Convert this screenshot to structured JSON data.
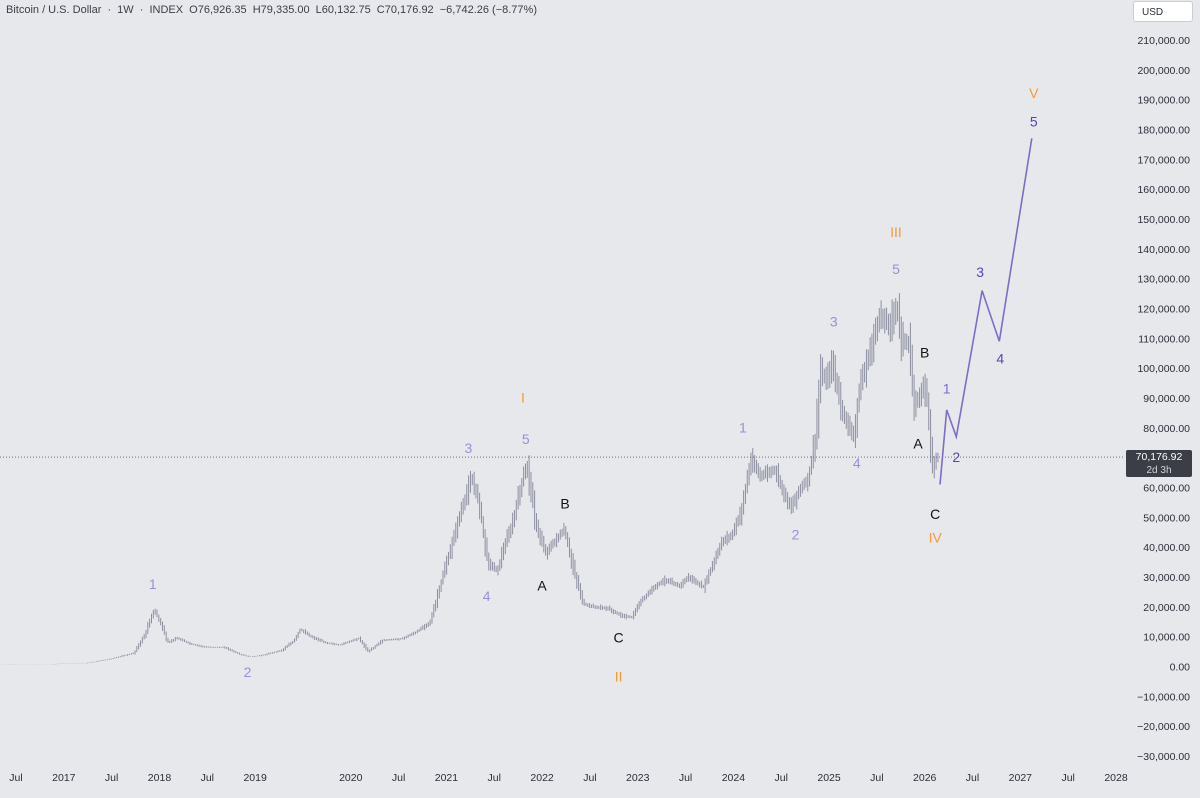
{
  "header": {
    "symbol": "Bitcoin / U.S. Dollar",
    "interval": "1W",
    "source": "INDEX",
    "open": "O76,926.35",
    "high": "H79,335.00",
    "low": "L60,132.75",
    "close": "C70,176.92",
    "change": "−6,742.26 (−8.77%)"
  },
  "toolbar": {
    "currency_label": "USD"
  },
  "price_badge": {
    "price": "70,176.92",
    "countdown": "2d 3h"
  },
  "colors": {
    "background": "#e7e8ec",
    "candle": "#8c8fa0",
    "projection": "#7d6cc8",
    "primary_wave": "#f29a37",
    "minor_wave": "#9a8fd6",
    "projection_label": "#5a43b0",
    "correction_label": "#111111"
  },
  "chart_data": {
    "type": "line",
    "title": "",
    "y_axis": {
      "min": -30000,
      "max": 210000,
      "step": 10000,
      "tick_labels": [
        "210,000.00",
        "200,000.00",
        "190,000.00",
        "180,000.00",
        "170,000.00",
        "160,000.00",
        "150,000.00",
        "140,000.00",
        "130,000.00",
        "120,000.00",
        "110,000.00",
        "100,000.00",
        "90,000.00",
        "80,000.00",
        "70,000.00",
        "60,000.00",
        "50,000.00",
        "40,000.00",
        "30,000.00",
        "20,000.00",
        "10,000.00",
        "0.00",
        "−10,000.00",
        "−20,000.00",
        "−30,000.00"
      ]
    },
    "x_axis": {
      "tick_labels": [
        "Jul",
        "2017",
        "Jul",
        "2018",
        "Jul",
        "2019",
        "2020",
        "Jul",
        "2021",
        "Jul",
        "2022",
        "Jul",
        "2023",
        "Jul",
        "2024",
        "Jul",
        "2025",
        "Jul",
        "2026",
        "Jul",
        "2027",
        "Jul",
        "2028"
      ],
      "tick_dates": [
        2016.5,
        2017.0,
        2017.5,
        2018.0,
        2018.5,
        2019.0,
        2020.0,
        2020.5,
        2021.0,
        2021.5,
        2022.0,
        2022.5,
        2023.0,
        2023.5,
        2024.0,
        2024.5,
        2025.0,
        2025.5,
        2026.0,
        2026.5,
        2027.0,
        2027.5,
        2028.0
      ]
    },
    "last_price": 70176.92,
    "price_series": {
      "name": "",
      "points": [
        [
          2016.0,
          430
        ],
        [
          2016.5,
          650
        ],
        [
          2016.9,
          750
        ],
        [
          2017.0,
          1000
        ],
        [
          2017.25,
          1100
        ],
        [
          2017.5,
          2500
        ],
        [
          2017.75,
          4500
        ],
        [
          2017.87,
          11000
        ],
        [
          2017.96,
          19000
        ],
        [
          2018.04,
          14000
        ],
        [
          2018.1,
          8000
        ],
        [
          2018.2,
          9500
        ],
        [
          2018.35,
          7500
        ],
        [
          2018.5,
          6500
        ],
        [
          2018.7,
          6400
        ],
        [
          2018.85,
          4200
        ],
        [
          2018.96,
          3200
        ],
        [
          2019.1,
          3800
        ],
        [
          2019.3,
          5500
        ],
        [
          2019.42,
          8500
        ],
        [
          2019.49,
          12500
        ],
        [
          2019.6,
          10000
        ],
        [
          2019.75,
          8000
        ],
        [
          2019.9,
          7200
        ],
        [
          2020.1,
          9500
        ],
        [
          2020.2,
          5000
        ],
        [
          2020.35,
          8800
        ],
        [
          2020.55,
          9300
        ],
        [
          2020.7,
          11500
        ],
        [
          2020.85,
          15000
        ],
        [
          2020.96,
          28000
        ],
        [
          2021.05,
          38000
        ],
        [
          2021.15,
          50000
        ],
        [
          2021.28,
          63000
        ],
        [
          2021.36,
          55000
        ],
        [
          2021.45,
          35000
        ],
        [
          2021.55,
          32000
        ],
        [
          2021.6,
          38000
        ],
        [
          2021.7,
          47000
        ],
        [
          2021.8,
          61000
        ],
        [
          2021.86,
          68000
        ],
        [
          2021.95,
          48000
        ],
        [
          2022.05,
          38000
        ],
        [
          2022.15,
          42000
        ],
        [
          2022.25,
          46000
        ],
        [
          2022.35,
          32000
        ],
        [
          2022.45,
          21000
        ],
        [
          2022.55,
          20000
        ],
        [
          2022.7,
          19500
        ],
        [
          2022.85,
          17000
        ],
        [
          2022.96,
          16500
        ],
        [
          2023.05,
          22000
        ],
        [
          2023.2,
          27000
        ],
        [
          2023.3,
          29000
        ],
        [
          2023.45,
          27000
        ],
        [
          2023.55,
          30000
        ],
        [
          2023.7,
          26500
        ],
        [
          2023.8,
          34000
        ],
        [
          2023.9,
          42000
        ],
        [
          2024.0,
          44000
        ],
        [
          2024.1,
          52000
        ],
        [
          2024.2,
          69000
        ],
        [
          2024.3,
          64000
        ],
        [
          2024.45,
          66000
        ],
        [
          2024.55,
          58000
        ],
        [
          2024.62,
          53000
        ],
        [
          2024.7,
          59000
        ],
        [
          2024.8,
          63000
        ],
        [
          2024.87,
          75000
        ],
        [
          2024.93,
          98000
        ],
        [
          2025.0,
          96000
        ],
        [
          2025.05,
          102000
        ],
        [
          2025.15,
          86000
        ],
        [
          2025.27,
          77000
        ],
        [
          2025.35,
          95000
        ],
        [
          2025.45,
          106000
        ],
        [
          2025.55,
          118000
        ],
        [
          2025.65,
          114000
        ],
        [
          2025.73,
          121000
        ],
        [
          2025.77,
          110000
        ],
        [
          2025.85,
          108000
        ],
        [
          2025.9,
          88000
        ],
        [
          2025.96,
          90000
        ],
        [
          2026.0,
          95000
        ],
        [
          2026.05,
          88000
        ],
        [
          2026.1,
          67000
        ],
        [
          2026.14,
          70177
        ]
      ]
    },
    "projection_series": {
      "name": "",
      "points": [
        [
          2026.16,
          61000
        ],
        [
          2026.23,
          86000
        ],
        [
          2026.33,
          77000
        ],
        [
          2026.6,
          126000
        ],
        [
          2026.78,
          109000
        ],
        [
          2027.12,
          177000
        ]
      ]
    },
    "annotations": [
      {
        "text": "1",
        "x": 2017.93,
        "y": 26000,
        "color": "#9a8fd6"
      },
      {
        "text": "2",
        "x": 2018.92,
        "y": -3500,
        "color": "#9a8fd6"
      },
      {
        "text": "3",
        "x": 2021.23,
        "y": 71500,
        "color": "#9a8fd6"
      },
      {
        "text": "4",
        "x": 2021.42,
        "y": 22000,
        "color": "#9a8fd6"
      },
      {
        "text": "5",
        "x": 2021.83,
        "y": 74500,
        "color": "#9a8fd6"
      },
      {
        "text": "I",
        "x": 2021.8,
        "y": 88500,
        "color": "#f29a37"
      },
      {
        "text": "A",
        "x": 2022.0,
        "y": 25500,
        "color": "#111111"
      },
      {
        "text": "B",
        "x": 2022.24,
        "y": 53000,
        "color": "#111111"
      },
      {
        "text": "C",
        "x": 2022.8,
        "y": 8000,
        "color": "#111111"
      },
      {
        "text": "II",
        "x": 2022.8,
        "y": -5000,
        "color": "#f29a37"
      },
      {
        "text": "1",
        "x": 2024.1,
        "y": 78500,
        "color": "#9a8fd6"
      },
      {
        "text": "2",
        "x": 2024.65,
        "y": 42500,
        "color": "#9a8fd6"
      },
      {
        "text": "3",
        "x": 2025.05,
        "y": 114000,
        "color": "#9a8fd6"
      },
      {
        "text": "4",
        "x": 2025.29,
        "y": 66500,
        "color": "#9a8fd6"
      },
      {
        "text": "5",
        "x": 2025.7,
        "y": 131500,
        "color": "#9a8fd6"
      },
      {
        "text": "III",
        "x": 2025.7,
        "y": 144000,
        "color": "#f29a37"
      },
      {
        "text": "A",
        "x": 2025.93,
        "y": 73000,
        "color": "#111111"
      },
      {
        "text": "B",
        "x": 2026.0,
        "y": 103500,
        "color": "#111111"
      },
      {
        "text": "C",
        "x": 2026.11,
        "y": 49500,
        "color": "#111111"
      },
      {
        "text": "IV",
        "x": 2026.11,
        "y": 41500,
        "color": "#f29a37"
      },
      {
        "text": "1",
        "x": 2026.23,
        "y": 91500,
        "color": "#7d6cc8"
      },
      {
        "text": "2",
        "x": 2026.33,
        "y": 68500,
        "color": "#5a43b0"
      },
      {
        "text": "3",
        "x": 2026.58,
        "y": 130500,
        "color": "#5a43b0"
      },
      {
        "text": "4",
        "x": 2026.79,
        "y": 101500,
        "color": "#5a43b0"
      },
      {
        "text": "5",
        "x": 2027.14,
        "y": 181000,
        "color": "#5a43b0"
      },
      {
        "text": "V",
        "x": 2027.14,
        "y": 190500,
        "color": "#f29a37"
      }
    ],
    "grid": false,
    "legend": "none"
  }
}
